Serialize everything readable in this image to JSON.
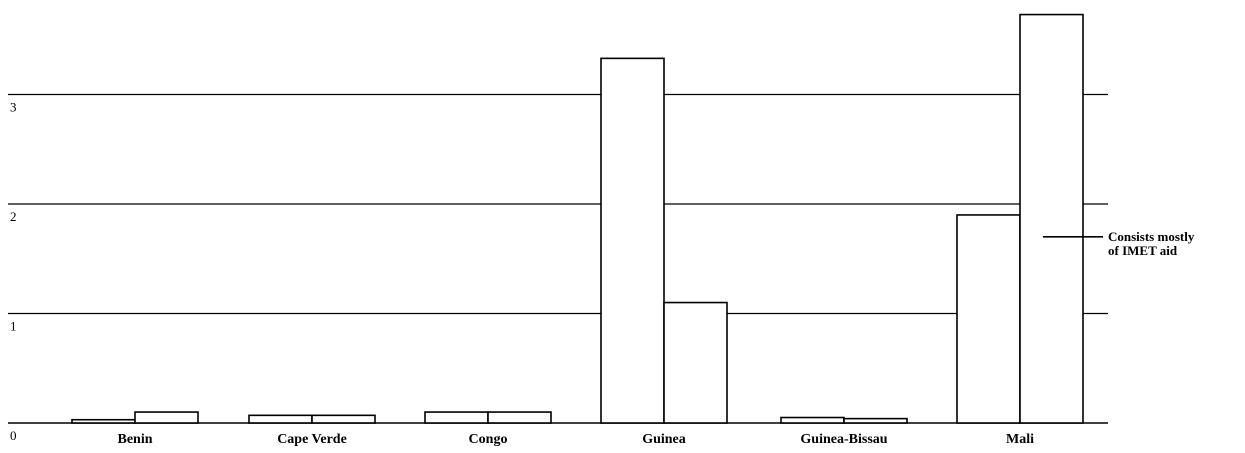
{
  "chart_data": {
    "type": "bar",
    "title": "",
    "xlabel": "",
    "ylabel": "",
    "categories": [
      "Benin",
      "Cape Verde",
      "Congo",
      "Guinea",
      "Guinea-Bissau",
      "Mali"
    ],
    "series": [
      {
        "values": [
          0.03,
          0.07,
          0.1,
          3.33,
          0.05,
          1.9
        ]
      },
      {
        "values": [
          0.1,
          0.07,
          0.1,
          1.1,
          0.04,
          3.73
        ]
      }
    ],
    "y_ticks": [
      0,
      1,
      2,
      3
    ],
    "ylim": [
      0,
      3.8
    ],
    "grid": true,
    "annotation": {
      "lines": [
        "Consists mostly",
        "of IMET aid"
      ],
      "category": "Mali",
      "value": 1.7
    }
  }
}
